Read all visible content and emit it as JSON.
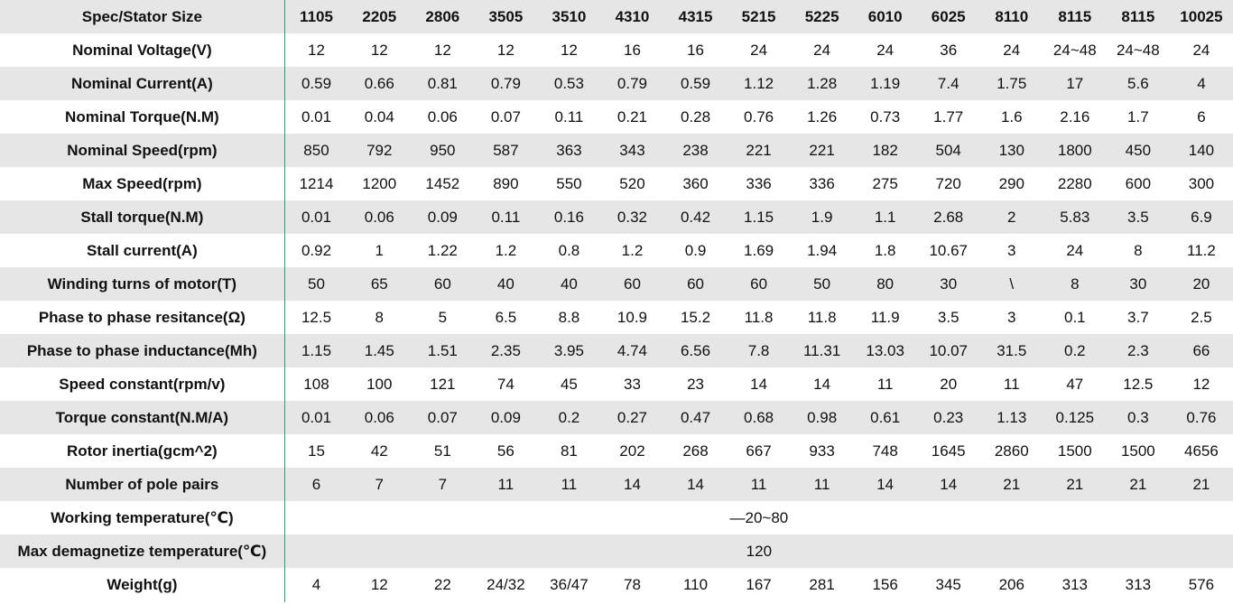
{
  "table": {
    "header": {
      "label": "Spec/Stator Size",
      "cells": [
        "1105",
        "2205",
        "2806",
        "3505",
        "3510",
        "4310",
        "4315",
        "5215",
        "5225",
        "6010",
        "6025",
        "8110",
        "8115",
        "8115",
        "10025"
      ]
    },
    "rows": [
      {
        "label": "Nominal Voltage(V)",
        "cells": [
          "12",
          "12",
          "12",
          "12",
          "12",
          "16",
          "16",
          "24",
          "24",
          "24",
          "36",
          "24",
          "24~48",
          "24~48",
          "24"
        ]
      },
      {
        "label": "Nominal Current(A)",
        "cells": [
          "0.59",
          "0.66",
          "0.81",
          "0.79",
          "0.53",
          "0.79",
          "0.59",
          "1.12",
          "1.28",
          "1.19",
          "7.4",
          "1.75",
          "17",
          "5.6",
          "4"
        ]
      },
      {
        "label": "Nominal Torque(N.M)",
        "cells": [
          "0.01",
          "0.04",
          "0.06",
          "0.07",
          "0.11",
          "0.21",
          "0.28",
          "0.76",
          "1.26",
          "0.73",
          "1.77",
          "1.6",
          "2.16",
          "1.7",
          "6"
        ]
      },
      {
        "label": "Nominal Speed(rpm)",
        "cells": [
          "850",
          "792",
          "950",
          "587",
          "363",
          "343",
          "238",
          "221",
          "221",
          "182",
          "504",
          "130",
          "1800",
          "450",
          "140"
        ]
      },
      {
        "label": "Max Speed(rpm)",
        "cells": [
          "1214",
          "1200",
          "1452",
          "890",
          "550",
          "520",
          "360",
          "336",
          "336",
          "275",
          "720",
          "290",
          "2280",
          "600",
          "300"
        ]
      },
      {
        "label": "Stall torque(N.M)",
        "cells": [
          "0.01",
          "0.06",
          "0.09",
          "0.11",
          "0.16",
          "0.32",
          "0.42",
          "1.15",
          "1.9",
          "1.1",
          "2.68",
          "2",
          "5.83",
          "3.5",
          "6.9"
        ]
      },
      {
        "label": "Stall current(A)",
        "cells": [
          "0.92",
          "1",
          "1.22",
          "1.2",
          "0.8",
          "1.2",
          "0.9",
          "1.69",
          "1.94",
          "1.8",
          "10.67",
          "3",
          "24",
          "8",
          "11.2"
        ]
      },
      {
        "label": "Winding turns of motor(T)",
        "cells": [
          "50",
          "65",
          "60",
          "40",
          "40",
          "60",
          "60",
          "60",
          "50",
          "80",
          "30",
          "\\",
          "8",
          "30",
          "20"
        ]
      },
      {
        "label": "Phase to phase resitance(Ω)",
        "cells": [
          "12.5",
          "8",
          "5",
          "6.5",
          "8.8",
          "10.9",
          "15.2",
          "11.8",
          "11.8",
          "11.9",
          "3.5",
          "3",
          "0.1",
          "3.7",
          "2.5"
        ]
      },
      {
        "label": "Phase to phase inductance(Mh)",
        "cells": [
          "1.15",
          "1.45",
          "1.51",
          "2.35",
          "3.95",
          "4.74",
          "6.56",
          "7.8",
          "11.31",
          "13.03",
          "10.07",
          "31.5",
          "0.2",
          "2.3",
          "66"
        ]
      },
      {
        "label": "Speed constant(rpm/v)",
        "cells": [
          "108",
          "100",
          "121",
          "74",
          "45",
          "33",
          "23",
          "14",
          "14",
          "11",
          "20",
          "11",
          "47",
          "12.5",
          "12"
        ]
      },
      {
        "label": "Torque constant(N.M/A)",
        "cells": [
          "0.01",
          "0.06",
          "0.07",
          "0.09",
          "0.2",
          "0.27",
          "0.47",
          "0.68",
          "0.98",
          "0.61",
          "0.23",
          "1.13",
          "0.125",
          "0.3",
          "0.76"
        ]
      },
      {
        "label": "Rotor inertia(gcm^2)",
        "cells": [
          "15",
          "42",
          "51",
          "56",
          "81",
          "202",
          "268",
          "667",
          "933",
          "748",
          "1645",
          "2860",
          "1500",
          "1500",
          "4656"
        ]
      },
      {
        "label": "Number of pole pairs",
        "cells": [
          "6",
          "7",
          "7",
          "11",
          "11",
          "14",
          "14",
          "11",
          "11",
          "14",
          "14",
          "21",
          "21",
          "21",
          "21"
        ]
      },
      {
        "label": "Working temperature(℃)",
        "span": "—20~80"
      },
      {
        "label": "Max demagnetize temperature(℃)",
        "span": "120"
      },
      {
        "label": "Weight(g)",
        "cells": [
          "4",
          "12",
          "22",
          "24/32",
          "36/47",
          "78",
          "110",
          "167",
          "281",
          "156",
          "345",
          "206",
          "313",
          "313",
          "576"
        ]
      }
    ]
  }
}
